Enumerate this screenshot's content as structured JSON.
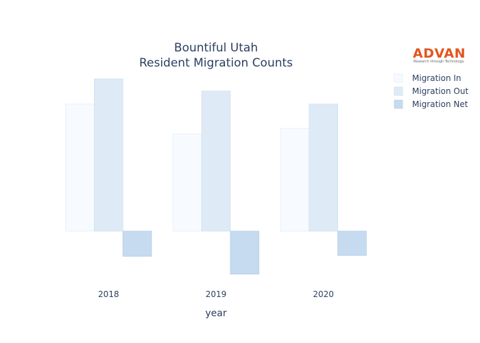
{
  "logo": {
    "name": "ADVAN",
    "tagline": "Research through Technology",
    "color": "#e2551f"
  },
  "chart_data": {
    "type": "bar",
    "title": [
      "Bountiful Utah",
      "Resident Migration Counts"
    ],
    "xlabel": "year",
    "ylabel": "",
    "categories": [
      "2018",
      "2019",
      "2020"
    ],
    "series": [
      {
        "name": "Migration In",
        "values": [
          680,
          520,
          550
        ],
        "color": "#f7fbff",
        "stroke": "#e3edf8"
      },
      {
        "name": "Migration Out",
        "values": [
          815,
          750,
          680
        ],
        "color": "#deebf7",
        "stroke": "#cfdff0"
      },
      {
        "name": "Migration Net",
        "values": [
          -135,
          -230,
          -130
        ],
        "color": "#c6dbef",
        "stroke": "#b7cfe8"
      }
    ],
    "ylim": [
      -250,
      815
    ],
    "grid": false,
    "y_ticks_visible": false,
    "legend": "top-right"
  }
}
